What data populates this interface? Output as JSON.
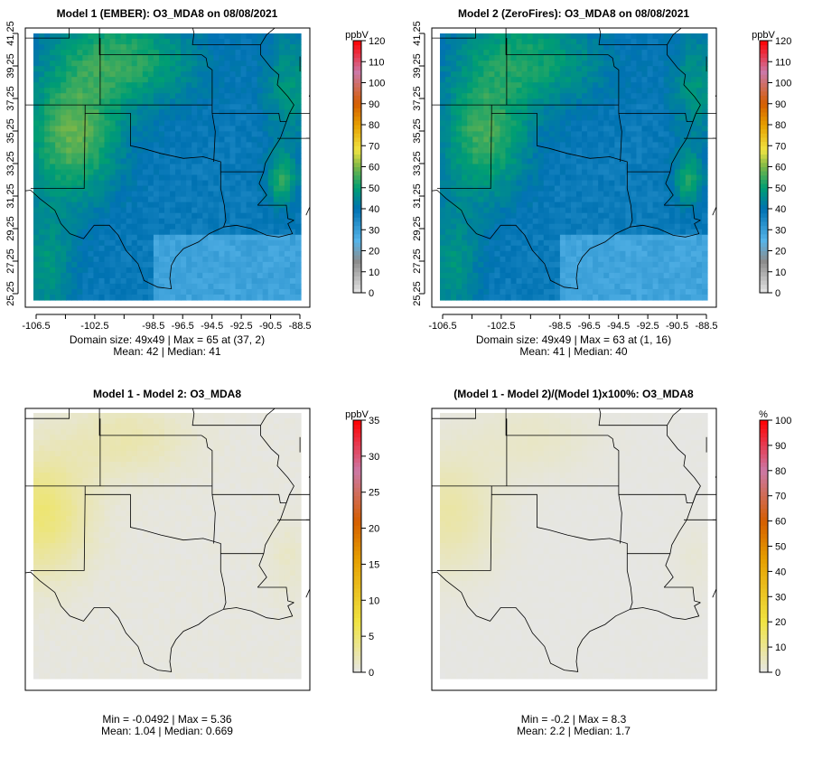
{
  "panels": [
    {
      "title": "Model 1 (EMBER): O3_MDA8 on 08/08/2021",
      "unit": "ppbV",
      "scale": "ozone",
      "colorbar_ticks": [
        "0",
        "10",
        "20",
        "30",
        "40",
        "50",
        "60",
        "70",
        "80",
        "90",
        "100",
        "110",
        "120"
      ],
      "colorbar_range": [
        0,
        120
      ],
      "x_ticks": [
        "-106.5",
        "-102.5",
        "-98.5",
        "-96.5",
        "-94.5",
        "-92.5",
        "-90.5",
        "-88.5"
      ],
      "y_ticks": [
        "25.25",
        "27.25",
        "29.25",
        "31.25",
        "33.25",
        "35.25",
        "37.25",
        "39.25",
        "41.25"
      ],
      "stats_line1": "Domain size: 49x49 | Max = 65 at (37, 2)",
      "stats_line2": "Mean: 42 |  Median: 41"
    },
    {
      "title": "Model 2 (ZeroFires): O3_MDA8 on 08/08/2021",
      "unit": "ppbV",
      "scale": "ozone",
      "colorbar_ticks": [
        "0",
        "10",
        "20",
        "30",
        "40",
        "50",
        "60",
        "70",
        "80",
        "90",
        "100",
        "110",
        "120"
      ],
      "colorbar_range": [
        0,
        120
      ],
      "x_ticks": [
        "-106.5",
        "-102.5",
        "-98.5",
        "-96.5",
        "-94.5",
        "-92.5",
        "-90.5",
        "-88.5"
      ],
      "y_ticks": [
        "25.25",
        "27.25",
        "29.25",
        "31.25",
        "33.25",
        "35.25",
        "37.25",
        "39.25",
        "41.25"
      ],
      "stats_line1": "Domain size: 49x49 | Max = 63 at (1, 16)",
      "stats_line2": "Mean: 41 |  Median: 40"
    },
    {
      "title": "Model 1 - Model 2: O3_MDA8",
      "unit": "ppbV",
      "scale": "diff",
      "colorbar_ticks": [
        "0",
        "5",
        "10",
        "15",
        "20",
        "25",
        "30",
        "35"
      ],
      "colorbar_range": [
        0,
        35
      ],
      "stats_line1": "Min = -0.0492 | Max = 5.36",
      "stats_line2": "Mean: 1.04 |  Median: 0.669"
    },
    {
      "title": "(Model 1 - Model 2)/(Model 1)x100%: O3_MDA8",
      "unit": "%",
      "scale": "diff",
      "colorbar_ticks": [
        "0",
        "10",
        "20",
        "30",
        "40",
        "50",
        "60",
        "70",
        "80",
        "90",
        "100"
      ],
      "colorbar_range": [
        0,
        100
      ],
      "stats_line1": "Min = -0.2 | Max = 8.3",
      "stats_line2": "Mean: 2.2 |  Median: 1.7"
    }
  ],
  "colors": {
    "ozone_scale": [
      "#e6e6e6",
      "#8c8c8c",
      "#56b4e9",
      "#0072b2",
      "#009e73",
      "#7ab648",
      "#f0e442",
      "#e69f00",
      "#d55e00",
      "#cc79a7",
      "#ff0000"
    ],
    "diff_scale": [
      "#e6e6e6",
      "#f0e442",
      "#e69f00",
      "#d55e00",
      "#cc79a7",
      "#ff0000"
    ],
    "border": "#000000"
  }
}
